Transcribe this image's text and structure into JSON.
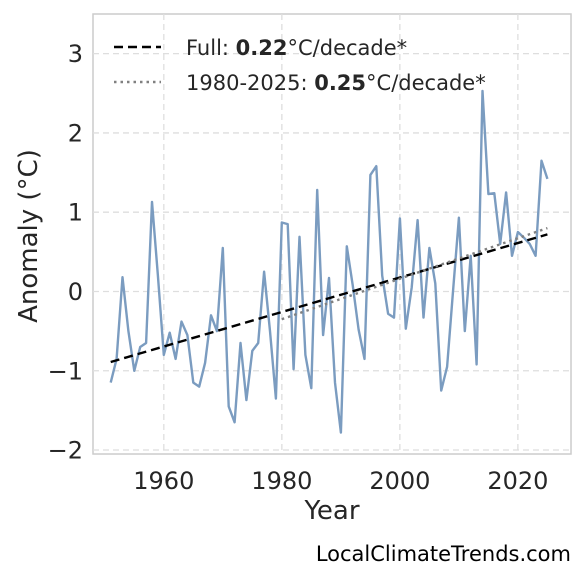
{
  "chart_data": {
    "type": "line",
    "xlabel": "Year",
    "ylabel": "Anomaly (°C)",
    "xlim": [
      1948,
      2029
    ],
    "ylim": [
      -2.05,
      3.5
    ],
    "xticks": [
      1960,
      1980,
      2000,
      2020
    ],
    "yticks": [
      -2,
      -1,
      0,
      1,
      2,
      3
    ],
    "grid": true,
    "legend_position": "top-left",
    "series": [
      {
        "color": "#7b9cc0",
        "style": "solid",
        "x": [
          1951,
          1952,
          1953,
          1954,
          1955,
          1956,
          1957,
          1958,
          1959,
          1960,
          1961,
          1962,
          1963,
          1964,
          1965,
          1966,
          1967,
          1968,
          1969,
          1970,
          1971,
          1972,
          1973,
          1974,
          1975,
          1976,
          1977,
          1978,
          1979,
          1980,
          1981,
          1982,
          1983,
          1984,
          1985,
          1986,
          1987,
          1988,
          1989,
          1990,
          1991,
          1992,
          1993,
          1994,
          1995,
          1996,
          1997,
          1998,
          1999,
          2000,
          2001,
          2002,
          2003,
          2004,
          2005,
          2006,
          2007,
          2008,
          2009,
          2010,
          2011,
          2012,
          2013,
          2014,
          2015,
          2016,
          2017,
          2018,
          2019,
          2020,
          2021,
          2022,
          2023,
          2024,
          2025
        ],
        "values": [
          -1.15,
          -0.85,
          0.18,
          -0.5,
          -1.0,
          -0.7,
          -0.65,
          1.13,
          0.2,
          -0.8,
          -0.52,
          -0.85,
          -0.38,
          -0.55,
          -1.15,
          -1.2,
          -0.9,
          -0.3,
          -0.5,
          0.55,
          -1.45,
          -1.65,
          -0.65,
          -1.37,
          -0.75,
          -0.65,
          0.25,
          -0.5,
          -1.35,
          0.87,
          0.85,
          -0.98,
          0.69,
          -0.8,
          -1.22,
          1.28,
          -0.55,
          0.17,
          -1.15,
          -1.78,
          0.57,
          0.08,
          -0.48,
          -0.85,
          1.47,
          1.58,
          0.2,
          -0.28,
          -0.33,
          0.92,
          -0.47,
          0.05,
          0.9,
          -0.33,
          0.55,
          0.1,
          -1.25,
          -0.95,
          0.0,
          0.93,
          -0.5,
          0.45,
          -0.92,
          2.53,
          1.23,
          1.24,
          0.6,
          1.25,
          0.45,
          0.75,
          0.68,
          0.6,
          0.45,
          1.65,
          1.42
        ]
      },
      {
        "name": "Full:",
        "rate": "0.22",
        "unit": "°C/decade*",
        "color": "#000000",
        "style": "dashed",
        "x": [
          1951,
          2025
        ],
        "values": [
          -0.89,
          0.72
        ]
      },
      {
        "name": "1980-2025:",
        "rate": "0.25",
        "unit": "°C/decade*",
        "color": "#808080",
        "style": "dotted",
        "x": [
          1980,
          2025
        ],
        "values": [
          -0.35,
          0.8
        ]
      }
    ]
  },
  "credit": "LocalClimateTrends.com"
}
